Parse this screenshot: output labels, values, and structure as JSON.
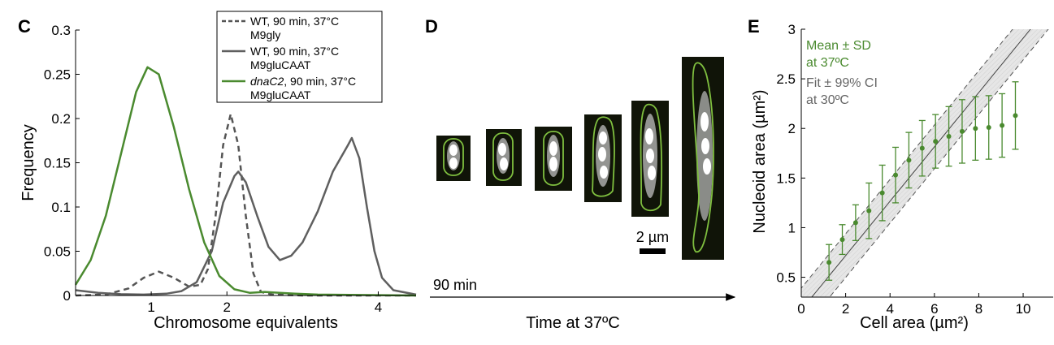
{
  "panels": {
    "c": {
      "letter": "C"
    },
    "d": {
      "letter": "D",
      "time_label": "90 min",
      "xlabel": "Time at 37ºC",
      "scalebar_label": "2 µm"
    },
    "e": {
      "letter": "E"
    }
  },
  "chart_data": [
    {
      "type": "line",
      "panel": "C",
      "xlabel": "Chromosome equivalents",
      "ylabel": "Frequency",
      "xlim": [
        0,
        4.5
      ],
      "ylim": [
        0,
        0.3
      ],
      "x_ticks": [
        1,
        2,
        4
      ],
      "y_ticks": [
        0,
        0.05,
        0.1,
        0.15,
        0.2,
        0.25,
        0.3
      ],
      "y_tick_labels": [
        "0",
        "0.05",
        "0.1",
        "0.15",
        "0.2",
        "0.25",
        "0.3"
      ],
      "grid": false,
      "legend_position": "top-right",
      "series": [
        {
          "name": "WT, 90 min, 37°C M9gly",
          "legend_line1": "WT, 90 min, 37°C",
          "legend_line2": "M9gly",
          "color": "#555555",
          "style": "dashed",
          "points": [
            [
              0,
              0
            ],
            [
              0.4,
              0.001
            ],
            [
              0.7,
              0.008
            ],
            [
              0.9,
              0.02
            ],
            [
              1.1,
              0.027
            ],
            [
              1.3,
              0.02
            ],
            [
              1.5,
              0.01
            ],
            [
              1.65,
              0.012
            ],
            [
              1.75,
              0.03
            ],
            [
              1.85,
              0.09
            ],
            [
              1.95,
              0.17
            ],
            [
              2.05,
              0.205
            ],
            [
              2.15,
              0.17
            ],
            [
              2.25,
              0.09
            ],
            [
              2.35,
              0.025
            ],
            [
              2.45,
              0.004
            ],
            [
              2.6,
              0.001
            ],
            [
              3.0,
              0.0
            ],
            [
              4.5,
              0.0
            ]
          ]
        },
        {
          "name": "WT, 90 min, 37°C M9gluCAAT",
          "legend_line1": "WT, 90 min, 37°C",
          "legend_line2": "M9gluCAAT",
          "color": "#5f5f5f",
          "style": "solid",
          "points": [
            [
              0,
              0.006
            ],
            [
              0.3,
              0.003
            ],
            [
              0.6,
              0.0015
            ],
            [
              0.9,
              0.001
            ],
            [
              1.2,
              0.002
            ],
            [
              1.4,
              0.005
            ],
            [
              1.6,
              0.015
            ],
            [
              1.8,
              0.05
            ],
            [
              1.95,
              0.105
            ],
            [
              2.1,
              0.135
            ],
            [
              2.15,
              0.14
            ],
            [
              2.25,
              0.128
            ],
            [
              2.4,
              0.09
            ],
            [
              2.55,
              0.055
            ],
            [
              2.7,
              0.04
            ],
            [
              2.85,
              0.045
            ],
            [
              3.0,
              0.06
            ],
            [
              3.2,
              0.095
            ],
            [
              3.4,
              0.14
            ],
            [
              3.6,
              0.17
            ],
            [
              3.65,
              0.178
            ],
            [
              3.75,
              0.155
            ],
            [
              3.85,
              0.1
            ],
            [
              3.95,
              0.05
            ],
            [
              4.05,
              0.02
            ],
            [
              4.2,
              0.006
            ],
            [
              4.5,
              0.001
            ]
          ]
        },
        {
          "name": "dnaC2, 90 min, 37°C M9gluCAAT",
          "legend_line1_italic": "dnaC2",
          "legend_line1_rest": ", 90 min, 37°C",
          "legend_line2": "M9gluCAAT",
          "color": "#4a8a2f",
          "style": "solid",
          "points": [
            [
              0,
              0.012
            ],
            [
              0.2,
              0.04
            ],
            [
              0.4,
              0.09
            ],
            [
              0.6,
              0.16
            ],
            [
              0.8,
              0.23
            ],
            [
              0.95,
              0.258
            ],
            [
              1.1,
              0.25
            ],
            [
              1.3,
              0.19
            ],
            [
              1.5,
              0.12
            ],
            [
              1.7,
              0.06
            ],
            [
              1.9,
              0.022
            ],
            [
              2.1,
              0.007
            ],
            [
              2.3,
              0.003
            ],
            [
              2.5,
              0.004
            ],
            [
              2.7,
              0.003
            ],
            [
              2.9,
              0.002
            ],
            [
              3.2,
              0.001
            ],
            [
              4.5,
              0.0
            ]
          ]
        }
      ]
    },
    {
      "type": "scatter",
      "panel": "E",
      "xlabel": "Cell area (µm²)",
      "ylabel": "Nucleoid area (µm²)",
      "xlim": [
        0,
        11.5
      ],
      "ylim": [
        0.3,
        3
      ],
      "x_ticks": [
        0,
        2,
        4,
        6,
        8,
        10
      ],
      "y_ticks": [
        0.5,
        1,
        1.5,
        2,
        2.5,
        3
      ],
      "y_tick_labels": [
        "0.5",
        "1",
        "1.5",
        "2",
        "2.5",
        "3"
      ],
      "grid": false,
      "annotations": {
        "mean_line1": "Mean ± SD",
        "mean_line2": "at 37ºC",
        "fit_line1": "Fit ± 99% CI",
        "fit_line2": "at 30ºC"
      },
      "series": [
        {
          "name": "Mean ± SD at 37ºC",
          "color": "#4a8a2f",
          "points": [
            {
              "x": 1.25,
              "y": 0.65,
              "sd": 0.18
            },
            {
              "x": 1.85,
              "y": 0.88,
              "sd": 0.15
            },
            {
              "x": 2.45,
              "y": 1.05,
              "sd": 0.18
            },
            {
              "x": 3.05,
              "y": 1.17,
              "sd": 0.28
            },
            {
              "x": 3.65,
              "y": 1.35,
              "sd": 0.28
            },
            {
              "x": 4.25,
              "y": 1.53,
              "sd": 0.28
            },
            {
              "x": 4.85,
              "y": 1.68,
              "sd": 0.28
            },
            {
              "x": 5.45,
              "y": 1.8,
              "sd": 0.28
            },
            {
              "x": 6.05,
              "y": 1.87,
              "sd": 0.27
            },
            {
              "x": 6.65,
              "y": 1.92,
              "sd": 0.3
            },
            {
              "x": 7.25,
              "y": 1.97,
              "sd": 0.32
            },
            {
              "x": 7.85,
              "y": 2.0,
              "sd": 0.32
            },
            {
              "x": 8.45,
              "y": 2.01,
              "sd": 0.32
            },
            {
              "x": 9.05,
              "y": 2.03,
              "sd": 0.32
            },
            {
              "x": 9.65,
              "y": 2.13,
              "sd": 0.34
            }
          ]
        },
        {
          "name": "Fit ± 99% CI at 30ºC",
          "color": "#777777",
          "fit": {
            "slope": 0.274,
            "intercept": 0.17,
            "ci_half_width": 0.22
          }
        }
      ]
    }
  ]
}
